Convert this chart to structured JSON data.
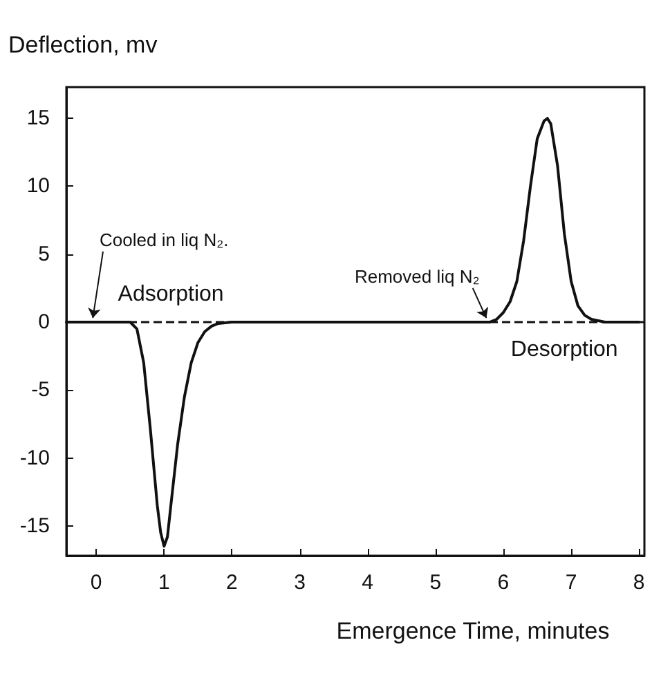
{
  "chart_data": {
    "type": "line",
    "xlabel": "Emergence Time, minutes",
    "ylabel": "Deflection, mv",
    "x": [
      -0.44,
      0.5,
      0.6,
      0.7,
      0.8,
      0.9,
      0.95,
      1.0,
      1.05,
      1.1,
      1.2,
      1.3,
      1.4,
      1.5,
      1.6,
      1.7,
      1.8,
      2.0,
      5.8,
      5.9,
      6.0,
      6.1,
      6.2,
      6.3,
      6.4,
      6.5,
      6.6,
      6.65,
      6.7,
      6.8,
      6.9,
      7.0,
      7.1,
      7.2,
      7.3,
      7.5,
      8.0
    ],
    "series": [
      {
        "color": "#111111",
        "values": [
          0,
          0,
          -0.5,
          -3,
          -8,
          -13.5,
          -15.5,
          -16.5,
          -15.8,
          -13.5,
          -9,
          -5.5,
          -3,
          -1.5,
          -0.7,
          -0.3,
          -0.1,
          0,
          0,
          0.2,
          0.7,
          1.5,
          3,
          6,
          10,
          13.5,
          14.8,
          15,
          14.6,
          11.5,
          6.5,
          3,
          1.2,
          0.5,
          0.2,
          0,
          0
        ]
      }
    ],
    "xlim": [
      -0.44,
      8.08
    ],
    "ylim": [
      -17.2,
      17.3
    ],
    "xticks": [
      0,
      1,
      2,
      3,
      4,
      5,
      6,
      7,
      8
    ],
    "yticks": [
      -15,
      -10,
      -5,
      0,
      5,
      10,
      15
    ],
    "marker": "none",
    "line_style": "solid",
    "ref_lines": [
      {
        "axis": "y",
        "value": 0,
        "color": "#111111",
        "line_style": "dashed"
      }
    ],
    "annotations": [
      {
        "text": "Cooled in liq N₂.",
        "x": -0.05,
        "y": 0
      },
      "Adsorption",
      {
        "text": "Removed liq N₂",
        "x": 5.75,
        "y": 0
      },
      "Desorption"
    ]
  }
}
